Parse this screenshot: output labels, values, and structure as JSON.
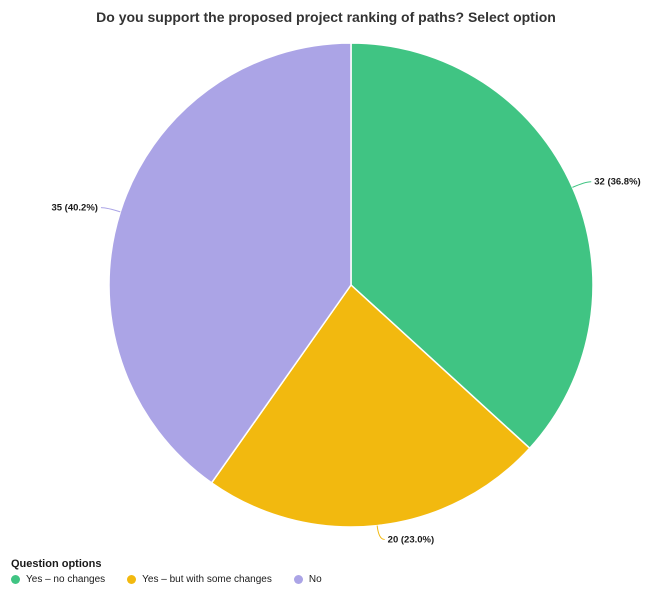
{
  "chart_data": {
    "type": "pie",
    "title": "Do you support the proposed project ranking of paths? Select option",
    "categories": [
      "Yes – no changes",
      "Yes – but with some changes",
      "No"
    ],
    "values": [
      32,
      20,
      35
    ],
    "percentages": [
      36.8,
      23.0,
      40.2
    ],
    "data_labels": [
      "32 (36.8%)",
      "20 (23.0%)",
      "35 (40.2%)"
    ],
    "colors": [
      "#40c483",
      "#f2b90f",
      "#aba4e6"
    ],
    "start_angle": "12 o'clock",
    "direction": "clockwise",
    "legend": {
      "title": "Question options",
      "position": "bottom-left"
    }
  }
}
